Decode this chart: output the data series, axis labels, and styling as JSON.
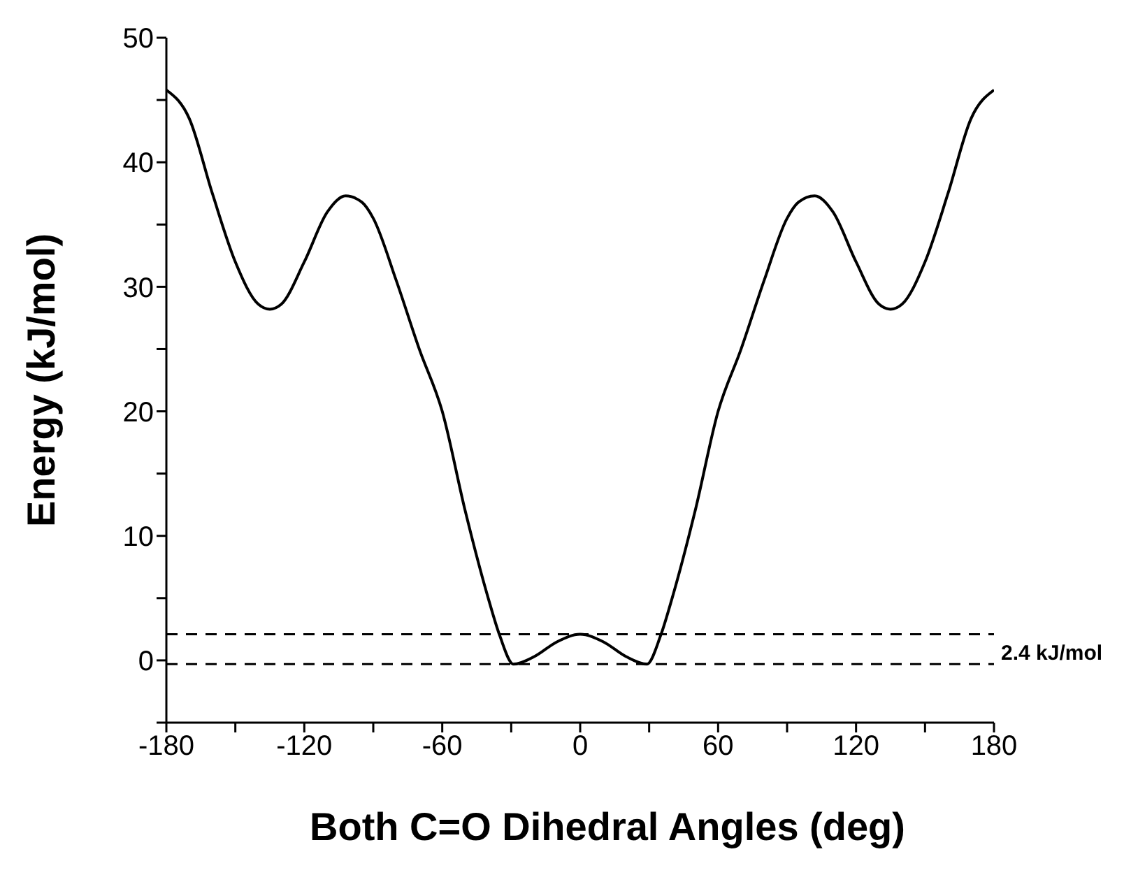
{
  "chart_data": {
    "type": "line",
    "xlabel": "Both C=O Dihedral Angles (deg)",
    "ylabel": "Energy (kJ/mol)",
    "x": [
      -180,
      -170,
      -160,
      -150,
      -140,
      -135,
      -130,
      -120,
      -110,
      -102,
      -95,
      -90,
      -80,
      -70,
      -60,
      -50,
      -40,
      -35,
      -29,
      -20,
      -10,
      0,
      10,
      20,
      29,
      35,
      40,
      50,
      60,
      70,
      80,
      90,
      95,
      102,
      110,
      120,
      130,
      135,
      140,
      150,
      160,
      170,
      180
    ],
    "series": [
      {
        "color": "#000000",
        "values": [
          45.8,
          43.5,
          37.5,
          32,
          28.6,
          28.2,
          28.6,
          32,
          36,
          37.3,
          36.8,
          35.5,
          30.5,
          25,
          20,
          12,
          5,
          2,
          -0.3,
          0.3,
          1.5,
          2.1,
          1.5,
          0.3,
          -0.3,
          2,
          5,
          12,
          20,
          25,
          30.5,
          35.5,
          36.8,
          37.3,
          36,
          32,
          28.6,
          28.2,
          28.6,
          32,
          37.5,
          43.5,
          45.8
        ]
      }
    ],
    "xlim": [
      -180,
      180
    ],
    "xticks": [
      -180,
      {
        "value": -150,
        "label": null
      },
      -120,
      {
        "value": -90,
        "label": null
      },
      -60,
      {
        "value": -30,
        "label": null
      },
      0,
      {
        "value": 30,
        "label": null
      },
      60,
      {
        "value": 90,
        "label": null
      },
      120,
      {
        "value": 150,
        "label": null
      },
      180
    ],
    "ylim": [
      -5,
      50
    ],
    "yticks": [
      {
        "value": -5,
        "label": null
      },
      0,
      {
        "value": 5,
        "label": null
      },
      10,
      {
        "value": 15,
        "label": null
      },
      20,
      {
        "value": 25,
        "label": null
      },
      30,
      {
        "value": 35,
        "label": null
      },
      40,
      {
        "value": 45,
        "label": null
      },
      50
    ],
    "ref_lines": [
      {
        "axis": "y",
        "value": 2.1,
        "color": "#000000",
        "line_style": "dashed"
      },
      {
        "axis": "y",
        "value": -0.3,
        "color": "#000000",
        "line_style": "dashed"
      }
    ],
    "annotations": [
      "2.4 kJ/mol"
    ],
    "grid": false,
    "legend": false,
    "marker": "none",
    "line_style": "solid"
  }
}
